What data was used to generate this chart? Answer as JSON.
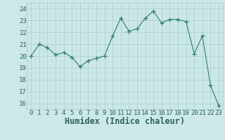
{
  "xlabel": "Humidex (Indice chaleur)",
  "x": [
    0,
    1,
    2,
    3,
    4,
    5,
    6,
    7,
    8,
    9,
    10,
    11,
    12,
    13,
    14,
    15,
    16,
    17,
    18,
    19,
    20,
    21,
    22,
    23
  ],
  "y": [
    20.0,
    21.0,
    20.7,
    20.1,
    20.3,
    19.9,
    19.1,
    19.6,
    19.8,
    20.0,
    21.7,
    23.2,
    22.1,
    22.3,
    23.2,
    23.8,
    22.8,
    23.1,
    23.1,
    22.9,
    20.2,
    21.7,
    17.5,
    15.8
  ],
  "line_color": "#2e7d6e",
  "marker": "+",
  "marker_size": 4,
  "bg_color": "#cce8e8",
  "grid_color_major": "#aacccc",
  "grid_color_minor": "#bbdddd",
  "ylim": [
    15.5,
    24.5
  ],
  "yticks": [
    16,
    17,
    18,
    19,
    20,
    21,
    22,
    23,
    24
  ],
  "xticks": [
    0,
    1,
    2,
    3,
    4,
    5,
    6,
    7,
    8,
    9,
    10,
    11,
    12,
    13,
    14,
    15,
    16,
    17,
    18,
    19,
    20,
    21,
    22,
    23
  ],
  "tick_label_color": "#2e6060",
  "xlabel_color": "#2e6060",
  "tick_fontsize": 6.5,
  "xlabel_fontsize": 8.5,
  "xlim": [
    -0.5,
    23.5
  ]
}
